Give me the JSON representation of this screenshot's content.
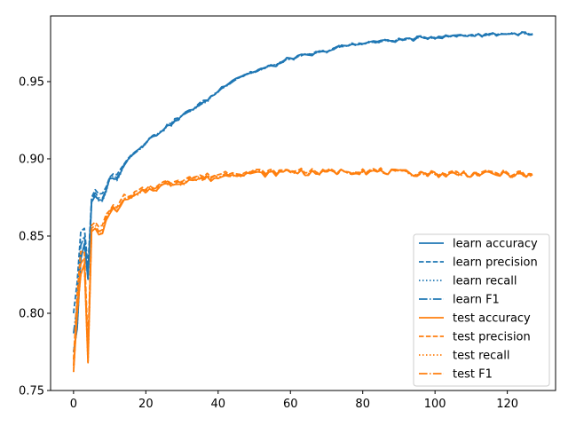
{
  "chart_data": {
    "type": "line",
    "title": "",
    "xlabel": "",
    "ylabel": "",
    "xlim": [
      -6.35,
      133.35
    ],
    "ylim": [
      0.75,
      0.9925
    ],
    "grid": false,
    "legend_position": "lower-right",
    "x_ticks": [
      {
        "value": 0,
        "label": "0"
      },
      {
        "value": 20,
        "label": "20"
      },
      {
        "value": 40,
        "label": "40"
      },
      {
        "value": 60,
        "label": "60"
      },
      {
        "value": 80,
        "label": "80"
      },
      {
        "value": 100,
        "label": "100"
      },
      {
        "value": 120,
        "label": "120"
      }
    ],
    "y_ticks": [
      {
        "value": 0.75,
        "label": "0.75"
      },
      {
        "value": 0.8,
        "label": "0.80"
      },
      {
        "value": 0.85,
        "label": "0.85"
      },
      {
        "value": 0.9,
        "label": "0.90"
      },
      {
        "value": 0.95,
        "label": "0.95"
      }
    ],
    "x_max": 127,
    "series": [
      {
        "name": "learn accuracy",
        "color": "#1f77b4",
        "dash": "solid",
        "group": "learn",
        "keypoints": [
          [
            0,
            0.775
          ],
          [
            1,
            0.79
          ],
          [
            2,
            0.835
          ],
          [
            3,
            0.845
          ],
          [
            4,
            0.822
          ],
          [
            5,
            0.872
          ],
          [
            6,
            0.876
          ],
          [
            8,
            0.872
          ],
          [
            10,
            0.888
          ],
          [
            12,
            0.886
          ],
          [
            14,
            0.897
          ],
          [
            16,
            0.902
          ],
          [
            20,
            0.911
          ],
          [
            24,
            0.918
          ],
          [
            28,
            0.924
          ],
          [
            32,
            0.931
          ],
          [
            36,
            0.936
          ],
          [
            40,
            0.944
          ],
          [
            44,
            0.951
          ],
          [
            48,
            0.955
          ],
          [
            52,
            0.958
          ],
          [
            56,
            0.961
          ],
          [
            60,
            0.965
          ],
          [
            65,
            0.967
          ],
          [
            70,
            0.97
          ],
          [
            75,
            0.973
          ],
          [
            80,
            0.975
          ],
          [
            90,
            0.977
          ],
          [
            100,
            0.979
          ],
          [
            110,
            0.98
          ],
          [
            120,
            0.981
          ],
          [
            125,
            0.981
          ],
          [
            127,
            0.98
          ]
        ]
      },
      {
        "name": "learn precision",
        "color": "#1f77b4",
        "dash": "dashed",
        "group": "learn",
        "keypoints": [
          [
            0,
            0.8
          ],
          [
            1,
            0.82
          ],
          [
            2,
            0.853
          ],
          [
            3,
            0.855
          ],
          [
            4,
            0.83
          ],
          [
            5,
            0.875
          ],
          [
            6,
            0.88
          ],
          [
            8,
            0.877
          ],
          [
            10,
            0.889
          ],
          [
            12,
            0.89
          ],
          [
            14,
            0.898
          ],
          [
            16,
            0.903
          ],
          [
            20,
            0.911
          ],
          [
            24,
            0.918
          ],
          [
            28,
            0.925
          ],
          [
            32,
            0.931
          ],
          [
            36,
            0.937
          ],
          [
            40,
            0.944
          ],
          [
            44,
            0.951
          ],
          [
            48,
            0.955
          ],
          [
            52,
            0.958
          ],
          [
            56,
            0.961
          ],
          [
            60,
            0.965
          ],
          [
            65,
            0.967
          ],
          [
            70,
            0.97
          ],
          [
            75,
            0.973
          ],
          [
            80,
            0.975
          ],
          [
            90,
            0.977
          ],
          [
            100,
            0.979
          ],
          [
            110,
            0.98
          ],
          [
            120,
            0.981
          ],
          [
            125,
            0.981
          ],
          [
            127,
            0.98
          ]
        ]
      },
      {
        "name": "learn recall",
        "color": "#1f77b4",
        "dash": "dotted",
        "group": "learn",
        "keypoints": [
          [
            0,
            0.775
          ],
          [
            1,
            0.79
          ],
          [
            2,
            0.835
          ],
          [
            3,
            0.845
          ],
          [
            4,
            0.822
          ],
          [
            5,
            0.872
          ],
          [
            6,
            0.876
          ],
          [
            8,
            0.872
          ],
          [
            10,
            0.888
          ],
          [
            12,
            0.886
          ],
          [
            14,
            0.897
          ],
          [
            16,
            0.902
          ],
          [
            20,
            0.911
          ],
          [
            24,
            0.918
          ],
          [
            28,
            0.924
          ],
          [
            32,
            0.931
          ],
          [
            36,
            0.936
          ],
          [
            40,
            0.944
          ],
          [
            44,
            0.951
          ],
          [
            48,
            0.955
          ],
          [
            52,
            0.958
          ],
          [
            56,
            0.961
          ],
          [
            60,
            0.965
          ],
          [
            65,
            0.967
          ],
          [
            70,
            0.97
          ],
          [
            75,
            0.973
          ],
          [
            80,
            0.975
          ],
          [
            90,
            0.977
          ],
          [
            100,
            0.979
          ],
          [
            110,
            0.98
          ],
          [
            120,
            0.981
          ],
          [
            125,
            0.981
          ],
          [
            127,
            0.98
          ]
        ]
      },
      {
        "name": "learn F1",
        "color": "#1f77b4",
        "dash": "dashdot",
        "group": "learn",
        "keypoints": [
          [
            0,
            0.787
          ],
          [
            1,
            0.805
          ],
          [
            2,
            0.844
          ],
          [
            3,
            0.85
          ],
          [
            4,
            0.826
          ],
          [
            5,
            0.873
          ],
          [
            6,
            0.878
          ],
          [
            8,
            0.874
          ],
          [
            10,
            0.888
          ],
          [
            12,
            0.888
          ],
          [
            14,
            0.897
          ],
          [
            16,
            0.902
          ],
          [
            20,
            0.911
          ],
          [
            24,
            0.918
          ],
          [
            28,
            0.924
          ],
          [
            32,
            0.931
          ],
          [
            36,
            0.936
          ],
          [
            40,
            0.944
          ],
          [
            44,
            0.951
          ],
          [
            48,
            0.955
          ],
          [
            52,
            0.958
          ],
          [
            56,
            0.961
          ],
          [
            60,
            0.965
          ],
          [
            65,
            0.967
          ],
          [
            70,
            0.97
          ],
          [
            75,
            0.973
          ],
          [
            80,
            0.975
          ],
          [
            90,
            0.977
          ],
          [
            100,
            0.979
          ],
          [
            110,
            0.98
          ],
          [
            120,
            0.981
          ],
          [
            125,
            0.981
          ],
          [
            127,
            0.98
          ]
        ]
      },
      {
        "name": "test accuracy",
        "color": "#ff7f0e",
        "dash": "solid",
        "group": "test",
        "keypoints": [
          [
            0,
            0.762
          ],
          [
            1,
            0.8
          ],
          [
            2,
            0.825
          ],
          [
            3,
            0.832
          ],
          [
            4,
            0.768
          ],
          [
            5,
            0.853
          ],
          [
            6,
            0.855
          ],
          [
            8,
            0.851
          ],
          [
            10,
            0.866
          ],
          [
            12,
            0.867
          ],
          [
            14,
            0.872
          ],
          [
            16,
            0.874
          ],
          [
            20,
            0.879
          ],
          [
            24,
            0.882
          ],
          [
            28,
            0.884
          ],
          [
            32,
            0.886
          ],
          [
            36,
            0.887
          ],
          [
            40,
            0.888
          ],
          [
            44,
            0.89
          ],
          [
            48,
            0.891
          ],
          [
            52,
            0.89
          ],
          [
            56,
            0.891
          ],
          [
            60,
            0.892
          ],
          [
            65,
            0.891
          ],
          [
            70,
            0.891
          ],
          [
            75,
            0.892
          ],
          [
            80,
            0.892
          ],
          [
            90,
            0.891
          ],
          [
            100,
            0.89
          ],
          [
            110,
            0.89
          ],
          [
            120,
            0.89
          ],
          [
            125,
            0.889
          ],
          [
            127,
            0.888
          ]
        ]
      },
      {
        "name": "test precision",
        "color": "#ff7f0e",
        "dash": "dashed",
        "group": "test",
        "keypoints": [
          [
            0,
            0.77
          ],
          [
            1,
            0.812
          ],
          [
            2,
            0.84
          ],
          [
            3,
            0.84
          ],
          [
            4,
            0.78
          ],
          [
            5,
            0.857
          ],
          [
            6,
            0.859
          ],
          [
            8,
            0.856
          ],
          [
            10,
            0.868
          ],
          [
            12,
            0.87
          ],
          [
            14,
            0.875
          ],
          [
            16,
            0.876
          ],
          [
            20,
            0.881
          ],
          [
            24,
            0.884
          ],
          [
            28,
            0.886
          ],
          [
            32,
            0.888
          ],
          [
            36,
            0.889
          ],
          [
            40,
            0.89
          ],
          [
            44,
            0.892
          ],
          [
            48,
            0.892
          ],
          [
            52,
            0.892
          ],
          [
            56,
            0.892
          ],
          [
            60,
            0.893
          ],
          [
            65,
            0.892
          ],
          [
            70,
            0.892
          ],
          [
            75,
            0.892
          ],
          [
            80,
            0.893
          ],
          [
            90,
            0.891
          ],
          [
            100,
            0.891
          ],
          [
            110,
            0.891
          ],
          [
            120,
            0.891
          ],
          [
            125,
            0.89
          ],
          [
            127,
            0.889
          ]
        ]
      },
      {
        "name": "test recall",
        "color": "#ff7f0e",
        "dash": "dotted",
        "group": "test",
        "keypoints": [
          [
            0,
            0.762
          ],
          [
            1,
            0.8
          ],
          [
            2,
            0.825
          ],
          [
            3,
            0.832
          ],
          [
            4,
            0.768
          ],
          [
            5,
            0.853
          ],
          [
            6,
            0.855
          ],
          [
            8,
            0.851
          ],
          [
            10,
            0.866
          ],
          [
            12,
            0.867
          ],
          [
            14,
            0.872
          ],
          [
            16,
            0.874
          ],
          [
            20,
            0.879
          ],
          [
            24,
            0.882
          ],
          [
            28,
            0.884
          ],
          [
            32,
            0.886
          ],
          [
            36,
            0.887
          ],
          [
            40,
            0.888
          ],
          [
            44,
            0.89
          ],
          [
            48,
            0.891
          ],
          [
            52,
            0.89
          ],
          [
            56,
            0.891
          ],
          [
            60,
            0.892
          ],
          [
            65,
            0.891
          ],
          [
            70,
            0.891
          ],
          [
            75,
            0.892
          ],
          [
            80,
            0.892
          ],
          [
            90,
            0.891
          ],
          [
            100,
            0.89
          ],
          [
            110,
            0.89
          ],
          [
            120,
            0.89
          ],
          [
            125,
            0.889
          ],
          [
            127,
            0.888
          ]
        ]
      },
      {
        "name": "test F1",
        "color": "#ff7f0e",
        "dash": "dashdot",
        "group": "test",
        "keypoints": [
          [
            0,
            0.766
          ],
          [
            1,
            0.806
          ],
          [
            2,
            0.832
          ],
          [
            3,
            0.836
          ],
          [
            4,
            0.774
          ],
          [
            5,
            0.855
          ],
          [
            6,
            0.857
          ],
          [
            8,
            0.853
          ],
          [
            10,
            0.867
          ],
          [
            12,
            0.868
          ],
          [
            14,
            0.873
          ],
          [
            16,
            0.875
          ],
          [
            20,
            0.88
          ],
          [
            24,
            0.883
          ],
          [
            28,
            0.885
          ],
          [
            32,
            0.887
          ],
          [
            36,
            0.888
          ],
          [
            40,
            0.889
          ],
          [
            44,
            0.891
          ],
          [
            48,
            0.891
          ],
          [
            52,
            0.891
          ],
          [
            56,
            0.891
          ],
          [
            60,
            0.892
          ],
          [
            65,
            0.891
          ],
          [
            70,
            0.891
          ],
          [
            75,
            0.892
          ],
          [
            80,
            0.892
          ],
          [
            90,
            0.891
          ],
          [
            100,
            0.89
          ],
          [
            110,
            0.89
          ],
          [
            120,
            0.89
          ],
          [
            125,
            0.889
          ],
          [
            127,
            0.888
          ]
        ]
      }
    ]
  }
}
